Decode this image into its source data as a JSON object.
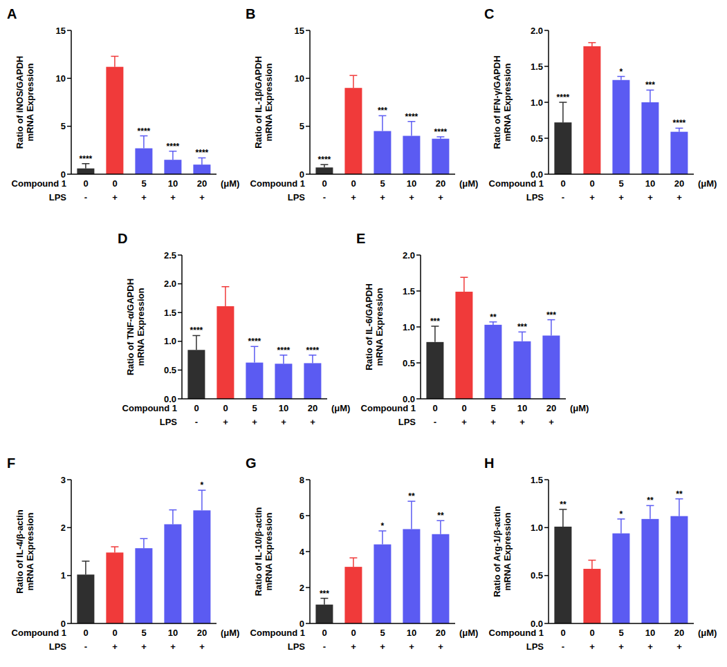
{
  "chart_data": [
    {
      "panel": "A",
      "type": "bar",
      "ylabel": [
        "Ratio of iNOS/GAPDH",
        "mRNA Expression"
      ],
      "x_label": "Compound 1",
      "unit": "(μM)",
      "lps_label": "LPS",
      "categories": [
        "0",
        "0",
        "5",
        "10",
        "20"
      ],
      "lps": [
        "-",
        "+",
        "+",
        "+",
        "+"
      ],
      "values": [
        0.6,
        11.2,
        2.7,
        1.5,
        1.0
      ],
      "errors": [
        0.5,
        1.1,
        1.3,
        0.9,
        0.7
      ],
      "annotations": [
        "****",
        null,
        "****",
        "****",
        "****"
      ],
      "colors": [
        "#2f2f2f",
        "#f03a3a",
        "#5b5bf2",
        "#5b5bf2",
        "#5b5bf2"
      ],
      "ylim": [
        0,
        15
      ],
      "yticks": [
        0,
        5,
        10,
        15
      ]
    },
    {
      "panel": "B",
      "type": "bar",
      "ylabel": [
        "Ratio of IL-1β/GAPDH",
        "mRNA Expression"
      ],
      "x_label": "Compound 1",
      "unit": "(μM)",
      "lps_label": "LPS",
      "categories": [
        "0",
        "0",
        "5",
        "10",
        "20"
      ],
      "lps": [
        "-",
        "+",
        "+",
        "+",
        "+"
      ],
      "values": [
        0.7,
        9.0,
        4.5,
        4.0,
        3.7
      ],
      "errors": [
        0.3,
        1.3,
        1.6,
        1.5,
        0.2
      ],
      "annotations": [
        "****",
        null,
        "***",
        "****",
        "****"
      ],
      "colors": [
        "#2f2f2f",
        "#f03a3a",
        "#5b5bf2",
        "#5b5bf2",
        "#5b5bf2"
      ],
      "ylim": [
        0,
        15
      ],
      "yticks": [
        0,
        5,
        10,
        15
      ]
    },
    {
      "panel": "C",
      "type": "bar",
      "ylabel": [
        "Ratio of IFN-γ/GAPDH",
        "mRNA Expression"
      ],
      "x_label": "Compound 1",
      "unit": "(μM)",
      "lps_label": "LPS",
      "categories": [
        "0",
        "0",
        "5",
        "10",
        "20"
      ],
      "lps": [
        "-",
        "+",
        "+",
        "+",
        "+"
      ],
      "values": [
        0.72,
        1.78,
        1.31,
        1.0,
        0.59
      ],
      "errors": [
        0.28,
        0.05,
        0.05,
        0.17,
        0.05
      ],
      "annotations": [
        "****",
        null,
        "*",
        "***",
        "****"
      ],
      "colors": [
        "#2f2f2f",
        "#f03a3a",
        "#5b5bf2",
        "#5b5bf2",
        "#5b5bf2"
      ],
      "ylim": [
        0,
        2
      ],
      "yticks": [
        {
          "value": 0,
          "label": "0.0"
        },
        0.5,
        {
          "value": 1,
          "label": "1.0"
        },
        1.5,
        {
          "value": 2,
          "label": "2.0"
        }
      ]
    },
    {
      "panel": "D",
      "type": "bar",
      "ylabel": [
        "Ratio of TNF-α/GAPDH",
        "mRNA Expression"
      ],
      "x_label": "Compound 1",
      "unit": "(μM)",
      "lps_label": "LPS",
      "categories": [
        "0",
        "0",
        "5",
        "10",
        "20"
      ],
      "lps": [
        "-",
        "+",
        "+",
        "+",
        "+"
      ],
      "values": [
        0.85,
        1.61,
        0.63,
        0.61,
        0.62
      ],
      "errors": [
        0.25,
        0.34,
        0.28,
        0.15,
        0.14
      ],
      "annotations": [
        "****",
        null,
        "****",
        "****",
        "****"
      ],
      "colors": [
        "#2f2f2f",
        "#f03a3a",
        "#5b5bf2",
        "#5b5bf2",
        "#5b5bf2"
      ],
      "ylim": [
        0,
        2.5
      ],
      "yticks": [
        {
          "value": 0,
          "label": "0.0"
        },
        0.5,
        {
          "value": 1,
          "label": "1.0"
        },
        1.5,
        {
          "value": 2,
          "label": "2.0"
        },
        2.5
      ]
    },
    {
      "panel": "E",
      "type": "bar",
      "ylabel": [
        "Ratio of IL-6/GAPDH",
        "mRNA Expression"
      ],
      "x_label": "Compound 1",
      "unit": "(μM)",
      "lps_label": "LPS",
      "categories": [
        "0",
        "0",
        "5",
        "10",
        "20"
      ],
      "lps": [
        "-",
        "+",
        "+",
        "+",
        "+"
      ],
      "values": [
        0.79,
        1.49,
        1.03,
        0.8,
        0.88
      ],
      "errors": [
        0.22,
        0.2,
        0.04,
        0.13,
        0.22
      ],
      "annotations": [
        "***",
        null,
        "**",
        "***",
        "***"
      ],
      "colors": [
        "#2f2f2f",
        "#f03a3a",
        "#5b5bf2",
        "#5b5bf2",
        "#5b5bf2"
      ],
      "ylim": [
        0,
        2
      ],
      "yticks": [
        {
          "value": 0,
          "label": "0.0"
        },
        0.5,
        {
          "value": 1,
          "label": "1.0"
        },
        1.5,
        {
          "value": 2,
          "label": "2.0"
        }
      ]
    },
    {
      "panel": "F",
      "type": "bar",
      "ylabel": [
        "Ratio of IL-4/β-actin",
        "mRNA Expression"
      ],
      "x_label": "Compound 1",
      "unit": "(μM)",
      "lps_label": "LPS",
      "categories": [
        "0",
        "0",
        "5",
        "10",
        "20"
      ],
      "lps": [
        "-",
        "+",
        "+",
        "+",
        "+"
      ],
      "values": [
        1.02,
        1.48,
        1.57,
        2.07,
        2.36
      ],
      "errors": [
        0.28,
        0.12,
        0.2,
        0.3,
        0.42
      ],
      "annotations": [
        null,
        null,
        null,
        null,
        "*"
      ],
      "colors": [
        "#2f2f2f",
        "#f03a3a",
        "#5b5bf2",
        "#5b5bf2",
        "#5b5bf2"
      ],
      "ylim": [
        0,
        3
      ],
      "yticks": [
        0,
        1,
        2,
        3
      ]
    },
    {
      "panel": "G",
      "type": "bar",
      "ylabel": [
        "Ratio of IL-10/β-actin",
        "mRNA Expression"
      ],
      "x_label": "Compound 1",
      "unit": "(μM)",
      "lps_label": "LPS",
      "categories": [
        "0",
        "0",
        "5",
        "10",
        "20"
      ],
      "lps": [
        "-",
        "+",
        "+",
        "+",
        "+"
      ],
      "values": [
        1.05,
        3.15,
        4.4,
        5.25,
        4.97
      ],
      "errors": [
        0.35,
        0.5,
        0.75,
        1.55,
        0.75
      ],
      "annotations": [
        "***",
        null,
        "*",
        "**",
        "**"
      ],
      "colors": [
        "#2f2f2f",
        "#f03a3a",
        "#5b5bf2",
        "#5b5bf2",
        "#5b5bf2"
      ],
      "ylim": [
        0,
        8
      ],
      "yticks": [
        0,
        2,
        4,
        6,
        8
      ]
    },
    {
      "panel": "H",
      "type": "bar",
      "ylabel": [
        "Ratio of Arg-1/β-actin",
        "mRNA Expression"
      ],
      "x_label": "Compound 1",
      "unit": "(μM)",
      "lps_label": "LPS",
      "categories": [
        "0",
        "0",
        "5",
        "10",
        "20"
      ],
      "lps": [
        "-",
        "+",
        "+",
        "+",
        "+"
      ],
      "values": [
        1.01,
        0.57,
        0.94,
        1.09,
        1.12
      ],
      "errors": [
        0.18,
        0.09,
        0.15,
        0.14,
        0.18
      ],
      "annotations": [
        "**",
        null,
        "*",
        "**",
        "**"
      ],
      "colors": [
        "#2f2f2f",
        "#f03a3a",
        "#5b5bf2",
        "#5b5bf2",
        "#5b5bf2"
      ],
      "ylim": [
        0,
        1.5
      ],
      "yticks": [
        {
          "value": 0,
          "label": "0.0"
        },
        0.5,
        {
          "value": 1,
          "label": "1.0"
        },
        1.5
      ]
    }
  ]
}
